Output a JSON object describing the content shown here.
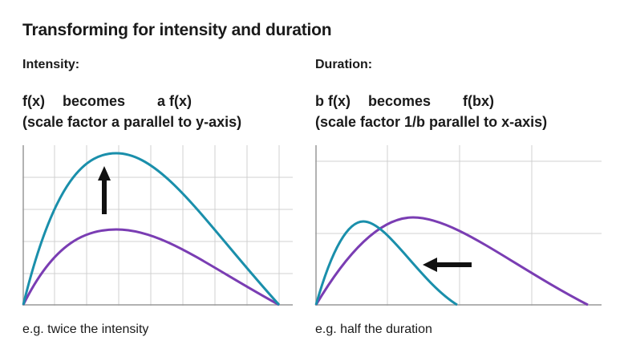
{
  "title": "Transforming for intensity and duration",
  "intensity": {
    "label": "Intensity:",
    "formula_from": "f(x)",
    "formula_verb": "becomes",
    "formula_to": "a f(x)",
    "subtitle": "(scale factor a parallel to y-axis)",
    "caption": "e.g. twice the intensity"
  },
  "duration": {
    "label": "Duration:",
    "formula_from": "b f(x)",
    "formula_verb": "becomes",
    "formula_to": "f(bx)",
    "subtitle": "(scale factor 1/b parallel to x-axis)",
    "caption": "e.g. half the duration"
  },
  "colors": {
    "transformed_curve": "#1a8fab",
    "original_curve": "#7a3db3",
    "grid": "#d0d0d0",
    "axis": "#999999",
    "arrow": "#111111"
  },
  "icons": {
    "intensity_arrow": "arrow-up-icon",
    "duration_arrow": "arrow-left-icon"
  }
}
